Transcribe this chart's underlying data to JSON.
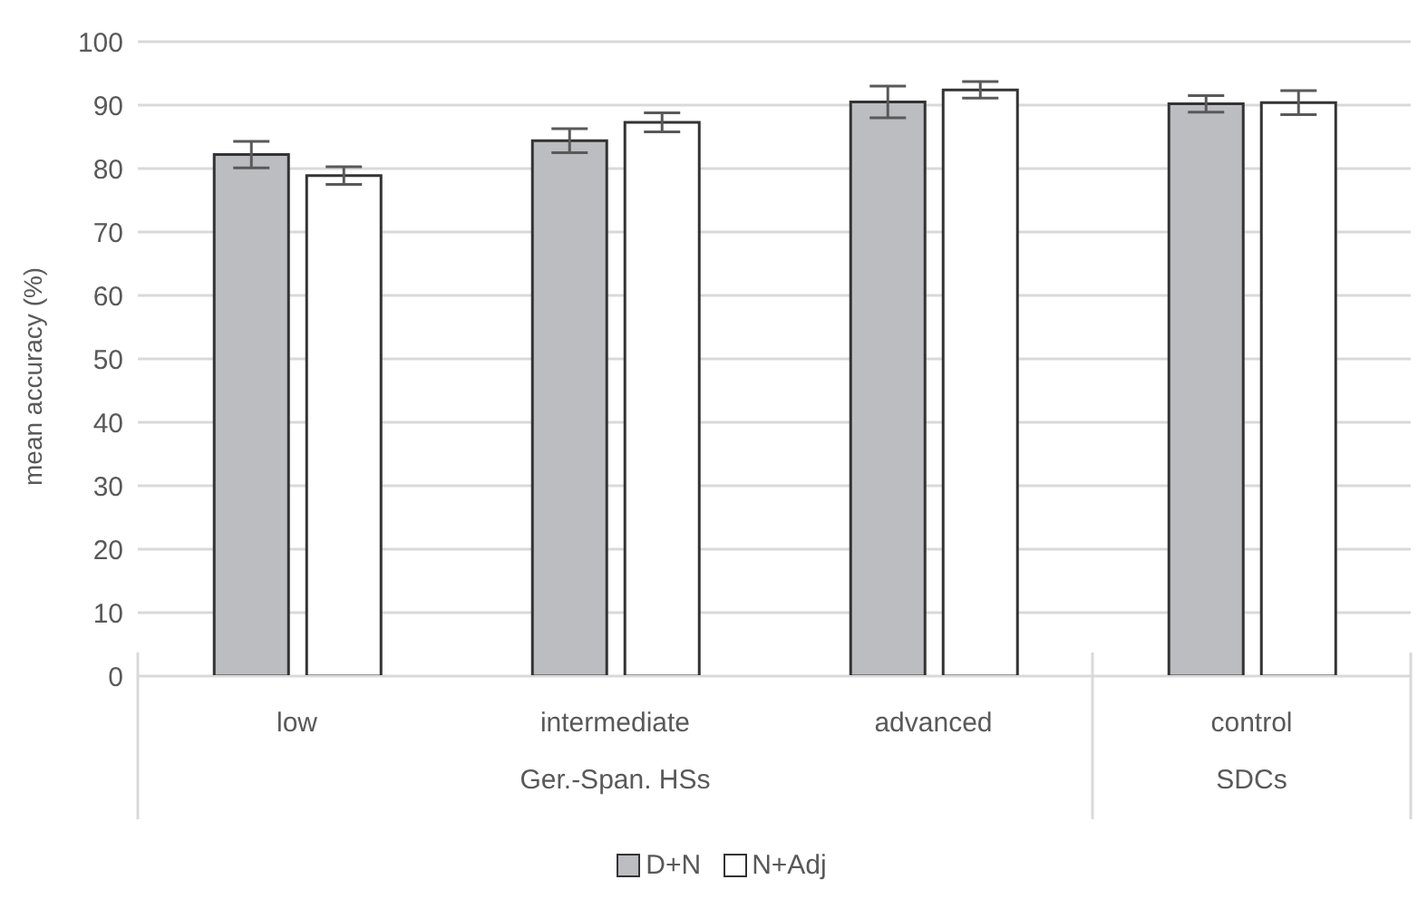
{
  "chart_data": {
    "type": "bar",
    "ylabel": "mean accuracy (%)",
    "categories": [
      "low",
      "intermediate",
      "advanced",
      "control"
    ],
    "series": [
      {
        "name": "D+N",
        "color": "#bcbdc0",
        "values": [
          82.2,
          84.4,
          90.5,
          90.2
        ],
        "errors": [
          2.1,
          1.9,
          2.5,
          1.3
        ]
      },
      {
        "name": "N+Adj",
        "color": "#ffffff",
        "values": [
          78.9,
          87.3,
          92.4,
          90.4
        ],
        "errors": [
          1.4,
          1.5,
          1.3,
          1.9
        ]
      }
    ],
    "annotations": [
      "Ger.-Span. HSs",
      "SDCs"
    ],
    "ylim": [
      0,
      100
    ],
    "yticks": [
      0,
      10,
      20,
      30,
      40,
      50,
      60,
      70,
      80,
      90,
      100
    ],
    "grid": "y",
    "legend": "bottom"
  }
}
